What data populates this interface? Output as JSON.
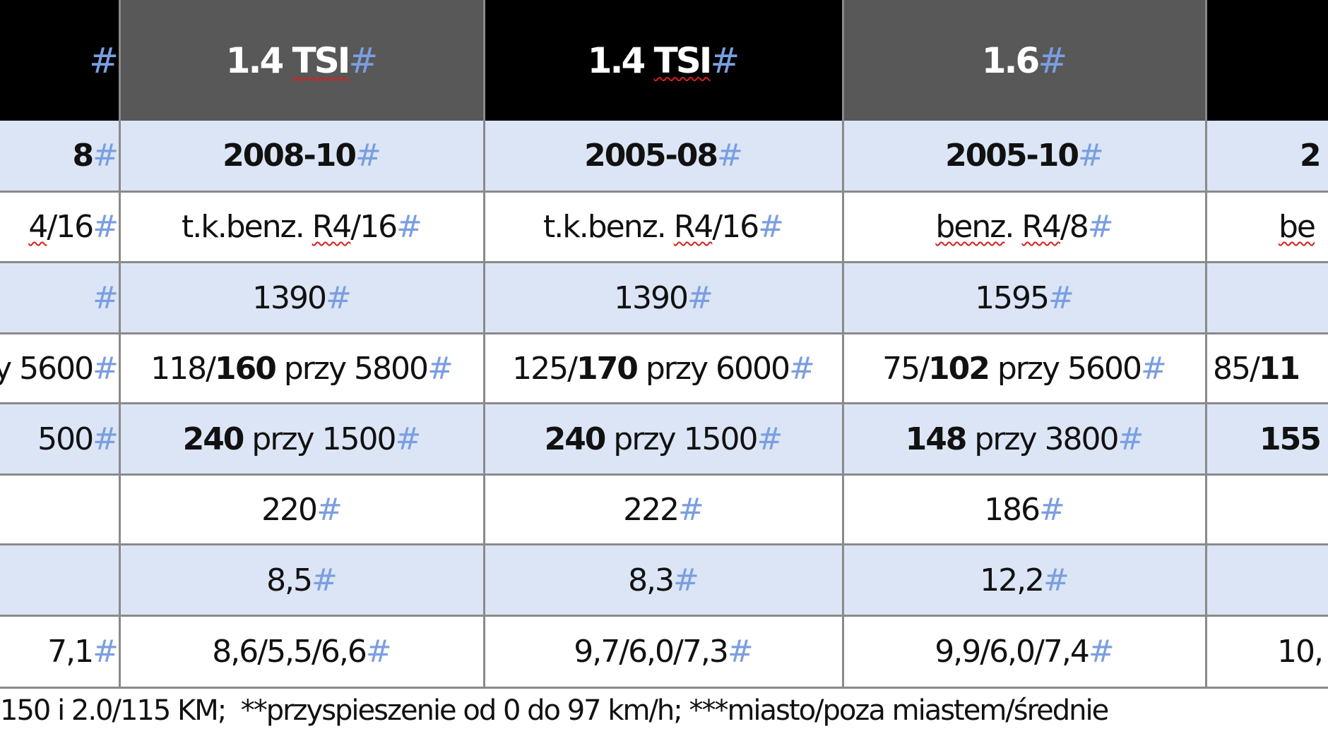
{
  "cell_mark": "#",
  "table": {
    "rows": [
      [
        [],
        [
          {
            "text": "1.4 "
          },
          {
            "text": "TSI",
            "spell": true
          }
        ],
        [
          {
            "text": "1.4 "
          },
          {
            "text": "TSI",
            "spell": true
          }
        ],
        [
          {
            "text": "1.6"
          }
        ],
        []
      ],
      [
        [
          {
            "text": "8",
            "bold": true
          }
        ],
        [
          {
            "text": "2008-10",
            "bold": true
          }
        ],
        [
          {
            "text": "2005-08",
            "bold": true
          }
        ],
        [
          {
            "text": "2005-10",
            "bold": true
          }
        ],
        [
          {
            "text": "2",
            "bold": true
          }
        ]
      ],
      [
        [
          {
            "text": "4",
            "spell": true
          },
          {
            "text": "/16"
          }
        ],
        [
          {
            "text": "t.k.benz. "
          },
          {
            "text": "R4",
            "spell": true
          },
          {
            "text": "/16"
          }
        ],
        [
          {
            "text": "t.k.benz. "
          },
          {
            "text": "R4",
            "spell": true
          },
          {
            "text": "/16"
          }
        ],
        [
          {
            "text": "benz",
            "spell": true
          },
          {
            "text": ". "
          },
          {
            "text": "R4",
            "spell": true
          },
          {
            "text": "/8"
          }
        ],
        [
          {
            "text": "be",
            "spell": true
          }
        ]
      ],
      [
        [],
        [
          {
            "text": "1390"
          }
        ],
        [
          {
            "text": "1390"
          }
        ],
        [
          {
            "text": "1595"
          }
        ],
        []
      ],
      [
        [
          {
            "text": "y 5600"
          }
        ],
        [
          {
            "text": "118/"
          },
          {
            "text": "160",
            "bold": true
          },
          {
            "text": " przy 5800"
          }
        ],
        [
          {
            "text": "125/"
          },
          {
            "text": "170",
            "bold": true
          },
          {
            "text": " przy 6000"
          }
        ],
        [
          {
            "text": "75/"
          },
          {
            "text": "102",
            "bold": true
          },
          {
            "text": " przy 5600"
          }
        ],
        [
          {
            "text": "85/"
          },
          {
            "text": "11",
            "bold": true
          }
        ]
      ],
      [
        [
          {
            "text": "500"
          }
        ],
        [
          {
            "text": "240",
            "bold": true
          },
          {
            "text": " przy 1500"
          }
        ],
        [
          {
            "text": "240",
            "bold": true
          },
          {
            "text": " przy 1500"
          }
        ],
        [
          {
            "text": "148",
            "bold": true
          },
          {
            "text": " przy 3800"
          }
        ],
        [
          {
            "text": "155",
            "bold": true
          }
        ]
      ],
      [
        [],
        [
          {
            "text": "220"
          }
        ],
        [
          {
            "text": "222"
          }
        ],
        [
          {
            "text": "186"
          }
        ],
        []
      ],
      [
        [],
        [
          {
            "text": "8,5"
          }
        ],
        [
          {
            "text": "8,3"
          }
        ],
        [
          {
            "text": "12,2"
          }
        ],
        []
      ],
      [
        [
          {
            "text": "7,1"
          }
        ],
        [
          {
            "text": "8,6/5,5/6,6"
          }
        ],
        [
          {
            "text": "9,7/6,0/7,3"
          }
        ],
        [
          {
            "text": "9,9/6,0/7,4"
          }
        ],
        [
          {
            "text": "10,"
          }
        ]
      ]
    ]
  },
  "footnote": "150 i 2.0/115 KM;  **przyspieszenie od 0 do 97 km/h; ***miasto/poza miastem/średnie"
}
